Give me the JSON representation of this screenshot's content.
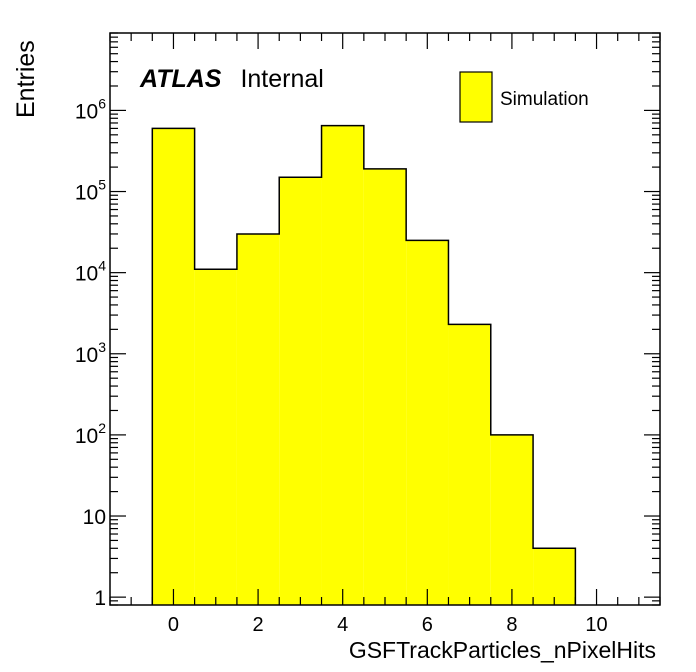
{
  "chart_data": {
    "type": "bar",
    "xlabel": "GSFTrackParticles_nPixelHits",
    "ylabel": "Entries",
    "xlim": [
      -1.5,
      11.5
    ],
    "ylim": [
      0.8,
      9000000
    ],
    "yscale": "log",
    "bin_width": 1,
    "x": [
      0,
      1,
      2,
      3,
      4,
      5,
      6,
      7,
      8,
      9
    ],
    "values": [
      600000,
      11000,
      30000,
      150000,
      650000,
      190000,
      25000,
      2300,
      100,
      4
    ],
    "x_ticks": [
      {
        "value": 0,
        "label": "0"
      },
      {
        "value": 2,
        "label": "2"
      },
      {
        "value": 4,
        "label": "4"
      },
      {
        "value": 6,
        "label": "6"
      },
      {
        "value": 8,
        "label": "8"
      },
      {
        "value": 10,
        "label": "10"
      }
    ],
    "y_ticks": [
      {
        "value": 1,
        "base": "1",
        "exp": ""
      },
      {
        "value": 10,
        "base": "10",
        "exp": ""
      },
      {
        "value": 100,
        "base": "10",
        "exp": "2"
      },
      {
        "value": 1000,
        "base": "10",
        "exp": "3"
      },
      {
        "value": 10000,
        "base": "10",
        "exp": "4"
      },
      {
        "value": 100000,
        "base": "10",
        "exp": "5"
      },
      {
        "value": 1000000,
        "base": "10",
        "exp": "6"
      }
    ],
    "legend": {
      "entries": [
        "Simulation"
      ],
      "placement": "top-right"
    },
    "label_bold": "ATLAS",
    "label_normal": "Internal",
    "fill_color": "#ffff00",
    "line_color": "#000000",
    "grid": false
  }
}
